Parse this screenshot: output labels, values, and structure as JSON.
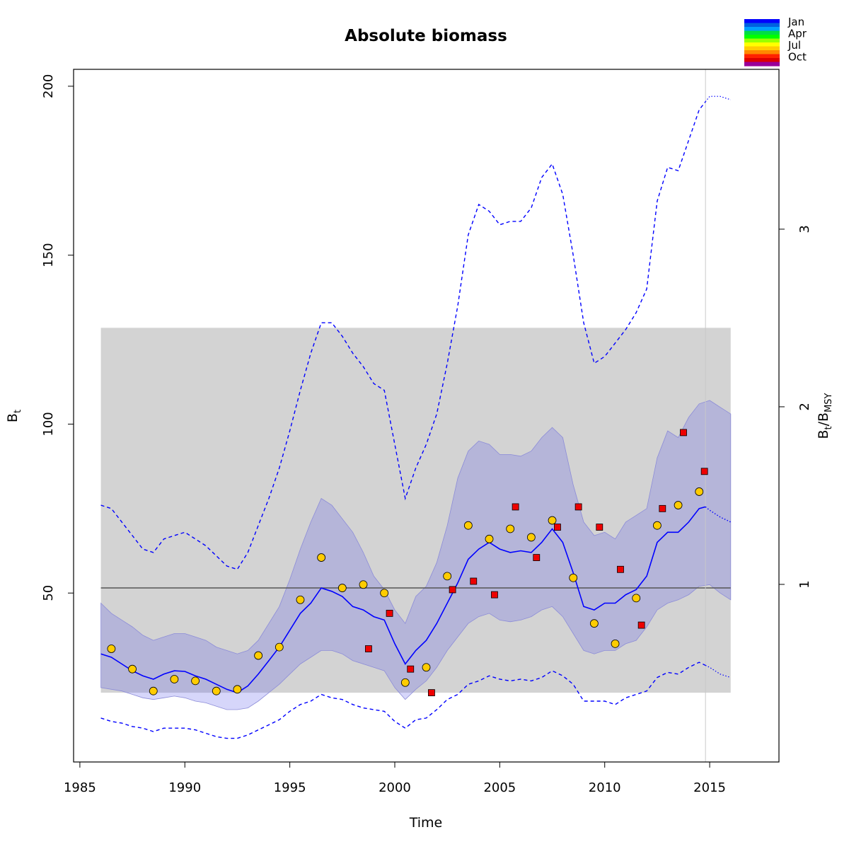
{
  "chart_data": {
    "type": "line",
    "title": "Absolute biomass",
    "xlabel": "Time",
    "ylabel": "B",
    "ylabel_sub": "t",
    "y2label_parts": [
      "B",
      "t",
      "/B",
      "MSY"
    ],
    "xlim": [
      1984.7,
      2018.3
    ],
    "ylim": [
      0,
      205
    ],
    "y2lim": [
      0,
      3.9
    ],
    "x_ticks": [
      1985,
      1990,
      1995,
      2000,
      2005,
      2010,
      2015
    ],
    "y_ticks": [
      50,
      100,
      150,
      200
    ],
    "y2_ticks": [
      1,
      2,
      3
    ],
    "bmsy_value": 51.5,
    "vertical_line_x": 2014.8,
    "bmsy_ci_band": {
      "x_range": [
        1986,
        2016
      ],
      "y_range": [
        20.5,
        128.5
      ]
    },
    "median_biomass": {
      "x": [
        1986,
        1986.5,
        1987,
        1987.5,
        1988,
        1988.5,
        1989,
        1989.5,
        1990,
        1990.5,
        1991,
        1991.5,
        1992,
        1992.5,
        1993,
        1993.5,
        1994,
        1994.5,
        1995,
        1995.5,
        1996,
        1996.5,
        1997,
        1997.5,
        1998,
        1998.5,
        1999,
        1999.5,
        2000,
        2000.5,
        2001,
        2001.5,
        2002,
        2002.5,
        2003,
        2003.5,
        2004,
        2004.5,
        2005,
        2005.5,
        2006,
        2006.5,
        2007,
        2007.5,
        2008,
        2008.5,
        2009,
        2009.5,
        2010,
        2010.5,
        2011,
        2011.5,
        2012,
        2012.5,
        2013,
        2013.5,
        2014,
        2014.5,
        2014.8
      ],
      "y": [
        32,
        31,
        29,
        27,
        25.5,
        24.5,
        26,
        27,
        26.8,
        25.5,
        24.5,
        23,
        21.5,
        20.5,
        22.5,
        26,
        30,
        34,
        39,
        44,
        47,
        51.5,
        50.5,
        49,
        46,
        45,
        43,
        42,
        35,
        29,
        33,
        36,
        41,
        47,
        53,
        60,
        63,
        65,
        63,
        62,
        62.5,
        62,
        65,
        69,
        65,
        56,
        46,
        45,
        47,
        47,
        49.5,
        51,
        55,
        65,
        68,
        68,
        71,
        75,
        75.5
      ]
    },
    "median_biomass_forecast": {
      "x": [
        2014.8,
        2015,
        2015.5,
        2016
      ],
      "y": [
        75.5,
        74.5,
        72.5,
        71
      ]
    },
    "ci_95_band": {
      "x": [
        1986,
        1986.5,
        1987,
        1987.5,
        1988,
        1988.5,
        1989,
        1989.5,
        1990,
        1990.5,
        1991,
        1991.5,
        1992,
        1992.5,
        1993,
        1993.5,
        1994,
        1994.5,
        1995,
        1995.5,
        1996,
        1996.5,
        1997,
        1997.5,
        1998,
        1998.5,
        1999,
        1999.5,
        2000,
        2000.5,
        2001,
        2001.5,
        2002,
        2002.5,
        2003,
        2003.5,
        2004,
        2004.5,
        2005,
        2005.5,
        2006,
        2006.5,
        2007,
        2007.5,
        2008,
        2008.5,
        2009,
        2009.5,
        2010,
        2010.5,
        2011,
        2011.5,
        2012,
        2012.5,
        2013,
        2013.5,
        2014,
        2014.5,
        2015,
        2015.5,
        2016
      ],
      "lower": [
        22,
        21.5,
        21,
        20,
        19,
        18.5,
        19,
        19.5,
        19,
        18,
        17.5,
        16.5,
        15.5,
        15.5,
        16,
        18,
        20.5,
        23,
        26,
        29,
        31,
        33,
        33,
        32,
        30,
        29,
        28,
        27,
        22,
        18.5,
        21.5,
        24,
        28,
        33,
        37,
        41,
        43,
        44,
        42,
        41.5,
        42,
        43,
        45,
        46,
        43,
        38,
        33,
        32,
        33,
        33,
        35,
        36,
        40,
        45,
        47,
        48,
        49.5,
        52,
        52.5,
        50,
        48
      ],
      "upper": [
        47,
        44,
        42,
        40,
        37.5,
        36,
        37,
        38,
        38,
        37,
        36,
        34,
        33,
        32,
        33,
        36,
        41,
        46,
        54,
        63,
        71,
        78,
        76,
        72,
        68,
        62,
        55,
        51,
        45,
        41,
        49,
        52,
        59,
        70,
        84,
        92,
        95,
        94,
        91,
        91,
        90.5,
        92,
        96,
        99,
        96,
        82,
        71,
        67,
        68,
        66,
        71,
        73,
        75,
        90,
        98,
        96,
        102,
        106,
        107,
        105,
        103
      ]
    },
    "ci_95_outer_lines": {
      "x": [
        1986,
        1986.5,
        1987,
        1987.5,
        1988,
        1988.5,
        1989,
        1989.5,
        1990,
        1990.5,
        1991,
        1991.5,
        1992,
        1992.5,
        1993,
        1993.5,
        1994,
        1994.5,
        1995,
        1995.5,
        1996,
        1996.5,
        1997,
        1997.5,
        1998,
        1998.5,
        1999,
        1999.5,
        2000,
        2000.5,
        2001,
        2001.5,
        2002,
        2002.5,
        2003,
        2003.5,
        2004,
        2004.5,
        2005,
        2005.5,
        2006,
        2006.5,
        2007,
        2007.5,
        2008,
        2008.5,
        2009,
        2009.5,
        2010,
        2010.5,
        2011,
        2011.5,
        2012,
        2012.5,
        2013,
        2013.5,
        2014,
        2014.5,
        2015,
        2015.5,
        2016
      ],
      "lower": [
        13,
        12,
        11.5,
        10.5,
        10,
        9,
        10,
        10,
        10,
        9.5,
        8.5,
        7.5,
        7,
        7,
        8,
        9.5,
        11,
        12.5,
        15,
        17,
        18,
        20,
        19,
        18.5,
        17,
        16,
        15.5,
        15,
        12,
        10,
        12.5,
        13,
        15.5,
        18.5,
        20,
        23,
        24,
        25.5,
        24.5,
        24,
        24.5,
        24,
        25,
        27,
        25.5,
        23,
        18,
        18,
        18,
        17,
        19,
        20,
        21,
        25,
        26.5,
        26,
        28,
        29.5,
        28,
        26,
        25
      ],
      "upper": [
        76,
        75,
        71,
        67,
        63,
        62,
        66,
        67,
        68,
        66,
        64,
        61,
        58,
        57,
        62,
        70,
        78,
        87,
        98,
        110,
        121,
        130,
        130,
        126,
        121,
        117,
        112,
        110,
        94,
        78,
        87,
        94,
        103,
        118,
        135,
        156,
        165,
        163,
        159,
        160,
        160,
        164,
        173,
        177,
        168,
        150,
        130,
        118,
        120,
        124,
        128,
        133,
        140,
        166,
        176,
        175,
        184,
        193,
        197,
        197,
        196
      ]
    },
    "ci_95_outer_forecast_segment": {
      "x_from": 2014.8,
      "x_to": 2016
    },
    "observations": [
      {
        "series": "index-1",
        "shape": "circle",
        "color": "#FFCC00",
        "months": "Jul",
        "points": [
          [
            1986.5,
            33.5
          ],
          [
            1987.5,
            27.5
          ],
          [
            1988.5,
            21
          ],
          [
            1989.5,
            24.5
          ],
          [
            1990.5,
            24
          ],
          [
            1991.5,
            21
          ],
          [
            1992.5,
            21.5
          ],
          [
            1993.5,
            31.5
          ],
          [
            1994.5,
            34
          ],
          [
            1995.5,
            48
          ],
          [
            1996.5,
            60.5
          ],
          [
            1997.5,
            51.5
          ],
          [
            1998.5,
            52.5
          ],
          [
            1999.5,
            50
          ],
          [
            2000.5,
            23.5
          ],
          [
            2001.5,
            28
          ],
          [
            2002.5,
            55
          ],
          [
            2003.5,
            70
          ],
          [
            2004.5,
            66
          ],
          [
            2005.5,
            69
          ],
          [
            2006.5,
            66.5
          ],
          [
            2007.5,
            71.5
          ],
          [
            2008.5,
            54.5
          ],
          [
            2009.5,
            41
          ],
          [
            2010.5,
            35
          ],
          [
            2011.5,
            48.5
          ],
          [
            2012.5,
            70
          ],
          [
            2013.5,
            76
          ],
          [
            2014.5,
            80
          ]
        ]
      },
      {
        "series": "index-2",
        "shape": "square",
        "color": "#EE0000",
        "months": "Oct",
        "points": [
          [
            1998.75,
            33.5
          ],
          [
            1999.75,
            44
          ],
          [
            2000.75,
            27.5
          ],
          [
            2001.75,
            20.5
          ],
          [
            2002.75,
            51
          ],
          [
            2003.75,
            53.5
          ],
          [
            2004.75,
            49.5
          ],
          [
            2005.75,
            75.5
          ],
          [
            2006.75,
            60.5
          ],
          [
            2007.75,
            69.5
          ],
          [
            2008.75,
            75.5
          ],
          [
            2009.75,
            69.5
          ],
          [
            2010.75,
            57
          ],
          [
            2011.75,
            40.5
          ],
          [
            2012.75,
            75
          ],
          [
            2013.75,
            97.5
          ],
          [
            2014.75,
            86
          ]
        ]
      }
    ],
    "color_legend": {
      "labels": [
        "Jan",
        "Apr",
        "Jul",
        "Oct"
      ],
      "colors": [
        "#0000FF",
        "#0060E0",
        "#00A0FF",
        "#00DD44",
        "#00FF00",
        "#99FF00",
        "#FFFF00",
        "#FFCC00",
        "#FF8800",
        "#FF2200",
        "#DD0000",
        "#990099"
      ]
    },
    "colors": {
      "median_line": "#0000FF",
      "ci_band": "rgba(90,90,235,0.25)",
      "ci_band_edge": "#8C8CD8",
      "bmsy_band": "#D3D3D3",
      "bmsy_line": "#555555",
      "ref_vline": "#C8C8C8"
    }
  }
}
